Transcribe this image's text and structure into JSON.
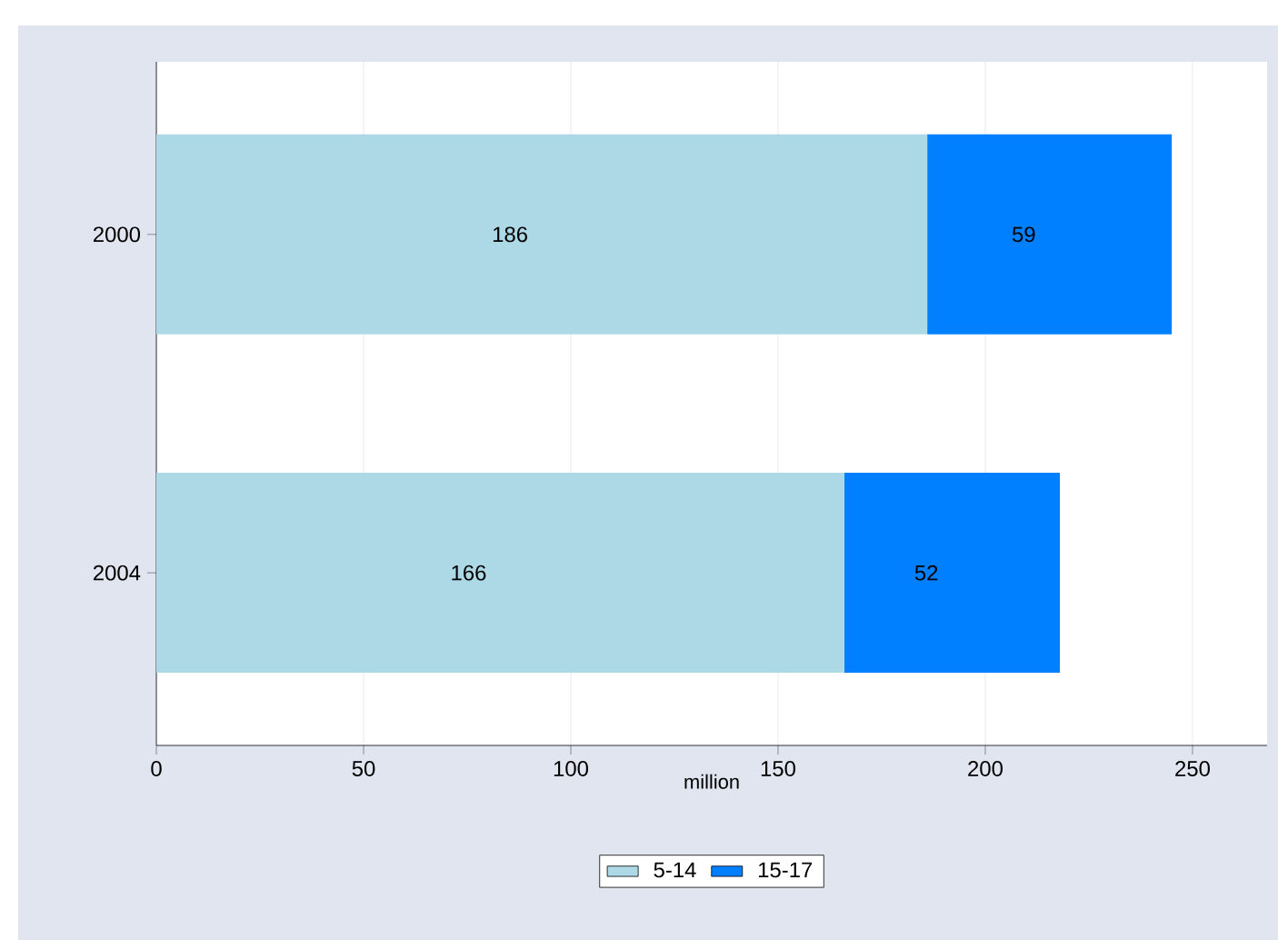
{
  "chart_data": {
    "type": "bar",
    "orientation": "horizontal",
    "stacked": true,
    "categories": [
      "2000",
      "2004"
    ],
    "series": [
      {
        "name": "5-14",
        "color": "#add8e6",
        "values": [
          186,
          166
        ]
      },
      {
        "name": "15-17",
        "color": "#0080ff",
        "values": [
          59,
          52
        ]
      }
    ],
    "xlabel": "million",
    "xlim": [
      0,
      268
    ],
    "xticks": [
      0,
      50,
      100,
      150,
      200,
      250
    ],
    "grid": "x",
    "legend": "bottom",
    "data_labels": true
  }
}
